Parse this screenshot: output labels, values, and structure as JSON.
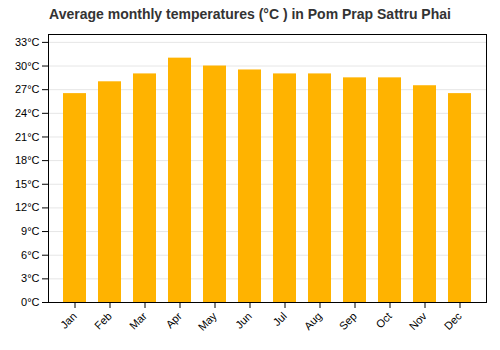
{
  "chart_data": {
    "type": "bar",
    "title": "Average monthly temperatures (°C ) in Pom Prap Sattru Phai",
    "categories": [
      "Jan",
      "Feb",
      "Mar",
      "Apr",
      "May",
      "Jun",
      "Jul",
      "Aug",
      "Sep",
      "Oct",
      "Nov",
      "Dec"
    ],
    "values": [
      26.5,
      28.0,
      29.0,
      31.0,
      30.0,
      29.5,
      29.0,
      29.0,
      28.5,
      28.5,
      27.5,
      26.5
    ],
    "color": "#FFB300",
    "ylim": [
      0,
      34
    ],
    "yticks": [
      {
        "value": 0,
        "label": "0°C"
      },
      {
        "value": 3,
        "label": "3°C"
      },
      {
        "value": 6,
        "label": "6°C"
      },
      {
        "value": 9,
        "label": "9°C"
      },
      {
        "value": 12,
        "label": "12°C"
      },
      {
        "value": 15,
        "label": "15°C"
      },
      {
        "value": 18,
        "label": "18°C"
      },
      {
        "value": 21,
        "label": "21°C"
      },
      {
        "value": 24,
        "label": "24°C"
      },
      {
        "value": 27,
        "label": "27°C"
      },
      {
        "value": 30,
        "label": "30°C"
      },
      {
        "value": 33,
        "label": "33°C"
      }
    ],
    "grid": true
  }
}
